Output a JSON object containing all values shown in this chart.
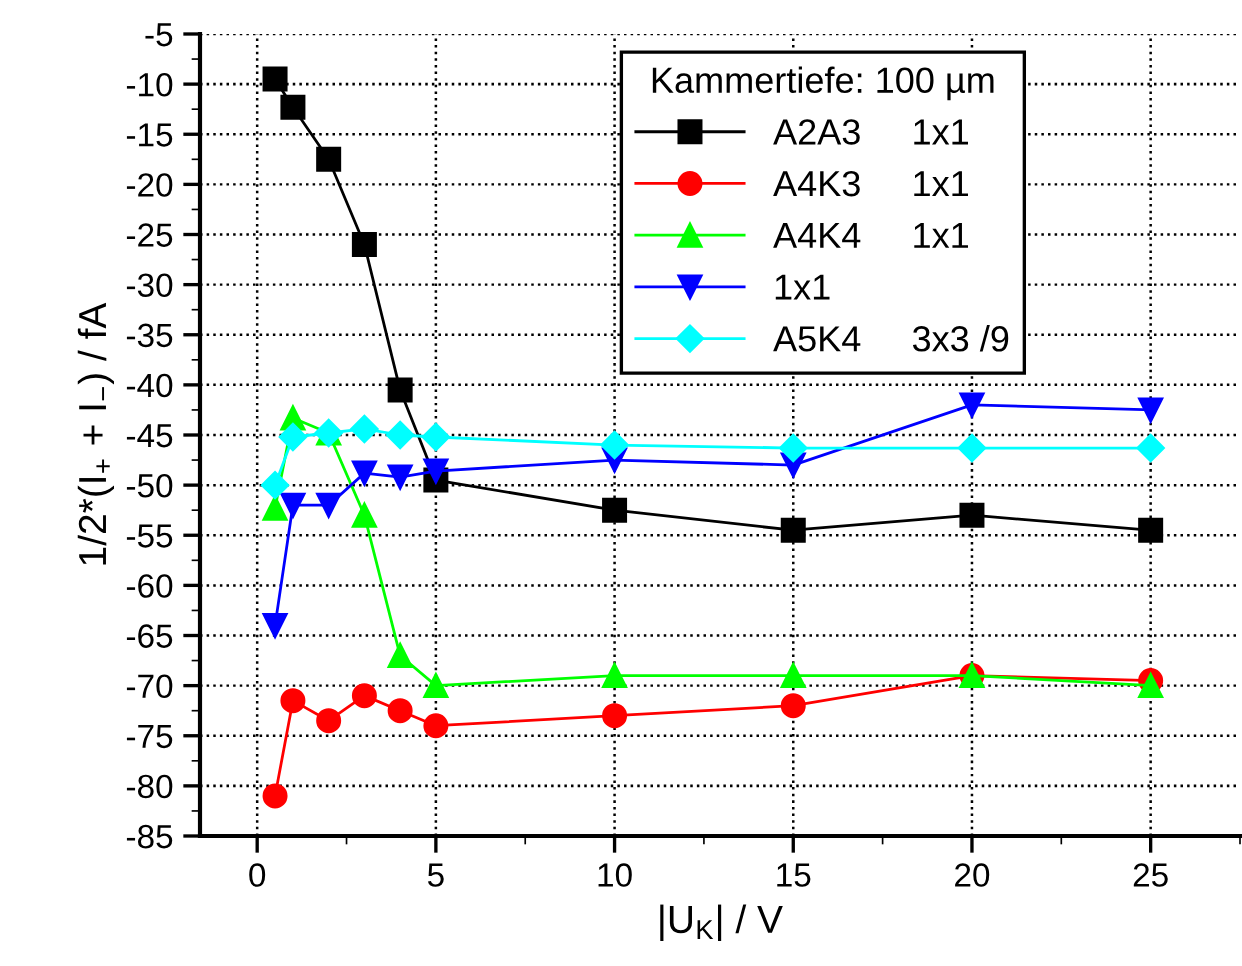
{
  "chart_data": {
    "type": "line",
    "xlabel": "|U$_{K}$| / V",
    "ylabel": "1/2*(I$_{+}$ + I$_{−}$) / fA",
    "legend_title": "Kammertiefe: 100 µm",
    "x": [
      0.5,
      1,
      2,
      3,
      4,
      5,
      10,
      15,
      20,
      25
    ],
    "series": [
      {
        "name": "A2A3     1x1",
        "color": "#000000",
        "marker": "square",
        "values": [
          -9.5,
          -12.3,
          -17.5,
          -26,
          -40.5,
          -49.5,
          -52.5,
          -54.5,
          -53,
          -54.5
        ]
      },
      {
        "name": "A4K3     1x1",
        "color": "#ff0000",
        "marker": "circle",
        "values": [
          -81,
          -71.5,
          -73.5,
          -71,
          -72.5,
          -74,
          -73,
          -72,
          -69,
          -69.5
        ]
      },
      {
        "name": "A4K4     1x1",
        "color": "#00ff00",
        "marker": "triangle",
        "values": [
          -52.3,
          -43.3,
          -44.8,
          -53,
          -67,
          -70,
          -69,
          -69,
          -69,
          -70
        ]
      },
      {
        "name": "1x1",
        "color": "#0000ff",
        "marker": "triangle_down",
        "values": [
          -64,
          -52,
          -52,
          -48.8,
          -49.2,
          -48.6,
          -47.5,
          -48,
          -42,
          -42.5
        ]
      },
      {
        "name": "A5K4     3x3 /9",
        "color": "#00ffff",
        "marker": "diamond",
        "values": [
          -50,
          -45.2,
          -44.8,
          -44.4,
          -45,
          -45.2,
          -46,
          -46.3,
          -46.3,
          -46.3
        ]
      }
    ],
    "xlim": [
      -1.6,
      27.5
    ],
    "xticks": [
      0,
      5,
      10,
      15,
      20,
      25
    ],
    "ylim": [
      -85,
      -5
    ],
    "yticks": [
      -85,
      -80,
      -75,
      -70,
      -65,
      -60,
      -55,
      -50,
      -45,
      -40,
      -35,
      -30,
      -25,
      -20,
      -15,
      -10,
      -5
    ],
    "grid": true,
    "legend": "top right",
    "line_style": "solid"
  }
}
